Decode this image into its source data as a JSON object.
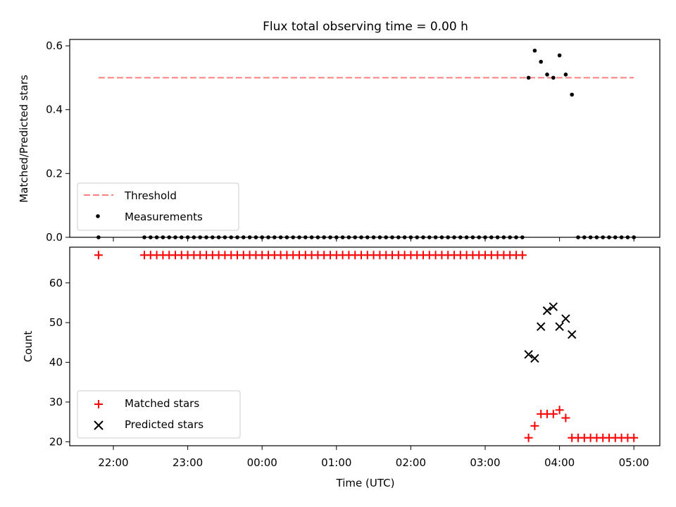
{
  "chart_data": [
    {
      "type": "scatter",
      "title": "Flux total observing time = 0.00 h",
      "xlabel": "",
      "ylabel": "Matched/Predicted stars",
      "ylim": [
        0,
        0.62
      ],
      "yticks": [
        "0.0",
        "0.2",
        "0.4",
        "0.6"
      ],
      "grid": false,
      "legend_position": "lower-left",
      "colors": {
        "threshold": "#ff7f7f",
        "measurements": "#000000"
      },
      "series": [
        {
          "name": "Threshold",
          "style": "dashed-line",
          "x": [
            "21:48",
            "05:00"
          ],
          "y": [
            0.5,
            0.5
          ]
        },
        {
          "name": "Measurements",
          "style": "dot",
          "x": [
            "21:48",
            "22:25",
            "22:30",
            "22:35",
            "22:40",
            "22:45",
            "22:50",
            "22:55",
            "23:00",
            "23:05",
            "23:10",
            "23:15",
            "23:20",
            "23:25",
            "23:30",
            "23:35",
            "23:40",
            "23:45",
            "23:50",
            "23:55",
            "00:00",
            "00:05",
            "00:10",
            "00:15",
            "00:20",
            "00:25",
            "00:30",
            "00:35",
            "00:40",
            "00:45",
            "00:50",
            "00:55",
            "01:00",
            "01:05",
            "01:10",
            "01:15",
            "01:20",
            "01:25",
            "01:30",
            "01:35",
            "01:40",
            "01:45",
            "01:50",
            "01:55",
            "02:00",
            "02:05",
            "02:10",
            "02:15",
            "02:20",
            "02:25",
            "02:30",
            "02:35",
            "02:40",
            "02:45",
            "02:50",
            "02:55",
            "03:00",
            "03:05",
            "03:10",
            "03:15",
            "03:20",
            "03:25",
            "03:30",
            "03:35",
            "03:40",
            "03:45",
            "03:50",
            "03:55",
            "04:00",
            "04:05",
            "04:10",
            "04:15",
            "04:20",
            "04:25",
            "04:30",
            "04:35",
            "04:40",
            "04:45",
            "04:50",
            "04:55",
            "05:00"
          ],
          "y": [
            0,
            0,
            0,
            0,
            0,
            0,
            0,
            0,
            0,
            0,
            0,
            0,
            0,
            0,
            0,
            0,
            0,
            0,
            0,
            0,
            0,
            0,
            0,
            0,
            0,
            0,
            0,
            0,
            0,
            0,
            0,
            0,
            0,
            0,
            0,
            0,
            0,
            0,
            0,
            0,
            0,
            0,
            0,
            0,
            0,
            0,
            0,
            0,
            0,
            0,
            0,
            0,
            0,
            0,
            0,
            0,
            0,
            0,
            0,
            0,
            0,
            0,
            0,
            0.5,
            0.585,
            0.55,
            0.51,
            0.5,
            0.57,
            0.51,
            0.447,
            0,
            0,
            0,
            0,
            0,
            0,
            0,
            0,
            0,
            0
          ]
        }
      ]
    },
    {
      "type": "scatter",
      "title": "",
      "xlabel": "Time (UTC)",
      "ylabel": "Count",
      "ylim": [
        19,
        69
      ],
      "yticks": [
        "20",
        "30",
        "40",
        "50",
        "60"
      ],
      "xticks": [
        "22:00",
        "23:00",
        "00:00",
        "01:00",
        "02:00",
        "03:00",
        "04:00",
        "05:00"
      ],
      "grid": false,
      "legend_position": "lower-left",
      "colors": {
        "matched": "#ff0000",
        "predicted": "#000000"
      },
      "series": [
        {
          "name": "Matched stars",
          "marker": "+",
          "x": [
            "21:48",
            "22:25",
            "22:30",
            "22:35",
            "22:40",
            "22:45",
            "22:50",
            "22:55",
            "23:00",
            "23:05",
            "23:10",
            "23:15",
            "23:20",
            "23:25",
            "23:30",
            "23:35",
            "23:40",
            "23:45",
            "23:50",
            "23:55",
            "00:00",
            "00:05",
            "00:10",
            "00:15",
            "00:20",
            "00:25",
            "00:30",
            "00:35",
            "00:40",
            "00:45",
            "00:50",
            "00:55",
            "01:00",
            "01:05",
            "01:10",
            "01:15",
            "01:20",
            "01:25",
            "01:30",
            "01:35",
            "01:40",
            "01:45",
            "01:50",
            "01:55",
            "02:00",
            "02:05",
            "02:10",
            "02:15",
            "02:20",
            "02:25",
            "02:30",
            "02:35",
            "02:40",
            "02:45",
            "02:50",
            "02:55",
            "03:00",
            "03:05",
            "03:10",
            "03:15",
            "03:20",
            "03:25",
            "03:30",
            "03:35",
            "03:40",
            "03:45",
            "03:50",
            "03:55",
            "04:00",
            "04:05",
            "04:10",
            "04:15",
            "04:20",
            "04:25",
            "04:30",
            "04:35",
            "04:40",
            "04:45",
            "04:50",
            "04:55",
            "05:00"
          ],
          "y": [
            67,
            67,
            67,
            67,
            67,
            67,
            67,
            67,
            67,
            67,
            67,
            67,
            67,
            67,
            67,
            67,
            67,
            67,
            67,
            67,
            67,
            67,
            67,
            67,
            67,
            67,
            67,
            67,
            67,
            67,
            67,
            67,
            67,
            67,
            67,
            67,
            67,
            67,
            67,
            67,
            67,
            67,
            67,
            67,
            67,
            67,
            67,
            67,
            67,
            67,
            67,
            67,
            67,
            67,
            67,
            67,
            67,
            67,
            67,
            67,
            67,
            67,
            67,
            21,
            24,
            27,
            27,
            27,
            28,
            26,
            21,
            21,
            21,
            21,
            21,
            21,
            21,
            21,
            21,
            21,
            21
          ]
        },
        {
          "name": "Predicted stars",
          "marker": "x",
          "x": [
            "03:35",
            "03:40",
            "03:45",
            "03:50",
            "03:55",
            "04:00",
            "04:05",
            "04:10"
          ],
          "y": [
            42,
            41,
            49,
            53,
            54,
            49,
            51,
            47
          ]
        }
      ]
    }
  ]
}
